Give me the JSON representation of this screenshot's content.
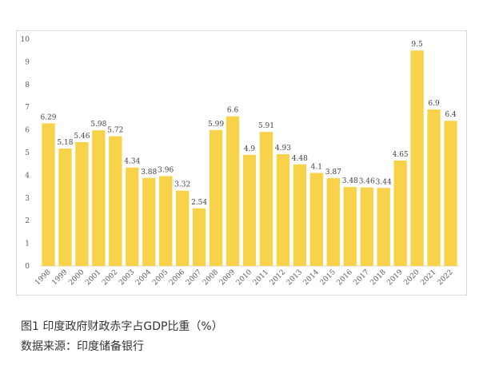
{
  "caption": {
    "figure_title": "图1  印度政府财政赤字占GDP比重（%）",
    "source": "数据来源：印度储备银行"
  },
  "colors": {
    "bar": "#F8D34A",
    "gridline": "#d9d9d9"
  },
  "chart_data": {
    "type": "bar",
    "title": "",
    "xlabel": "",
    "ylabel": "",
    "ylim": [
      0,
      10
    ],
    "yticks": [
      0,
      1,
      2,
      3,
      4,
      5,
      6,
      7,
      8,
      9,
      10
    ],
    "grid": false,
    "categories": [
      "1998",
      "1999",
      "2000",
      "2001",
      "2002",
      "2003",
      "2004",
      "2005",
      "2006",
      "2007",
      "2008",
      "2009",
      "2010",
      "2011",
      "2012",
      "2013",
      "2014",
      "2015",
      "2016",
      "2017",
      "2018",
      "2019",
      "2020",
      "2021",
      "2022"
    ],
    "values": [
      6.29,
      5.18,
      5.46,
      5.98,
      5.72,
      4.34,
      3.88,
      3.96,
      3.32,
      2.54,
      5.99,
      6.6,
      4.9,
      5.91,
      4.93,
      4.48,
      4.1,
      3.87,
      3.48,
      3.46,
      3.44,
      4.65,
      9.5,
      6.9,
      6.4
    ],
    "data_labels": [
      "6.29",
      "5.18",
      "5.46",
      "5.98",
      "5.72",
      "4.34",
      "3.88",
      "3.96",
      "3.32",
      "2.54",
      "5.99",
      "6.6",
      "4.9",
      "5.91",
      "4.93",
      "4.48",
      "4.1",
      "3.87",
      "3.48",
      "3.46",
      "3.44",
      "4.65",
      "9.5",
      "6.9",
      "6.4"
    ]
  }
}
